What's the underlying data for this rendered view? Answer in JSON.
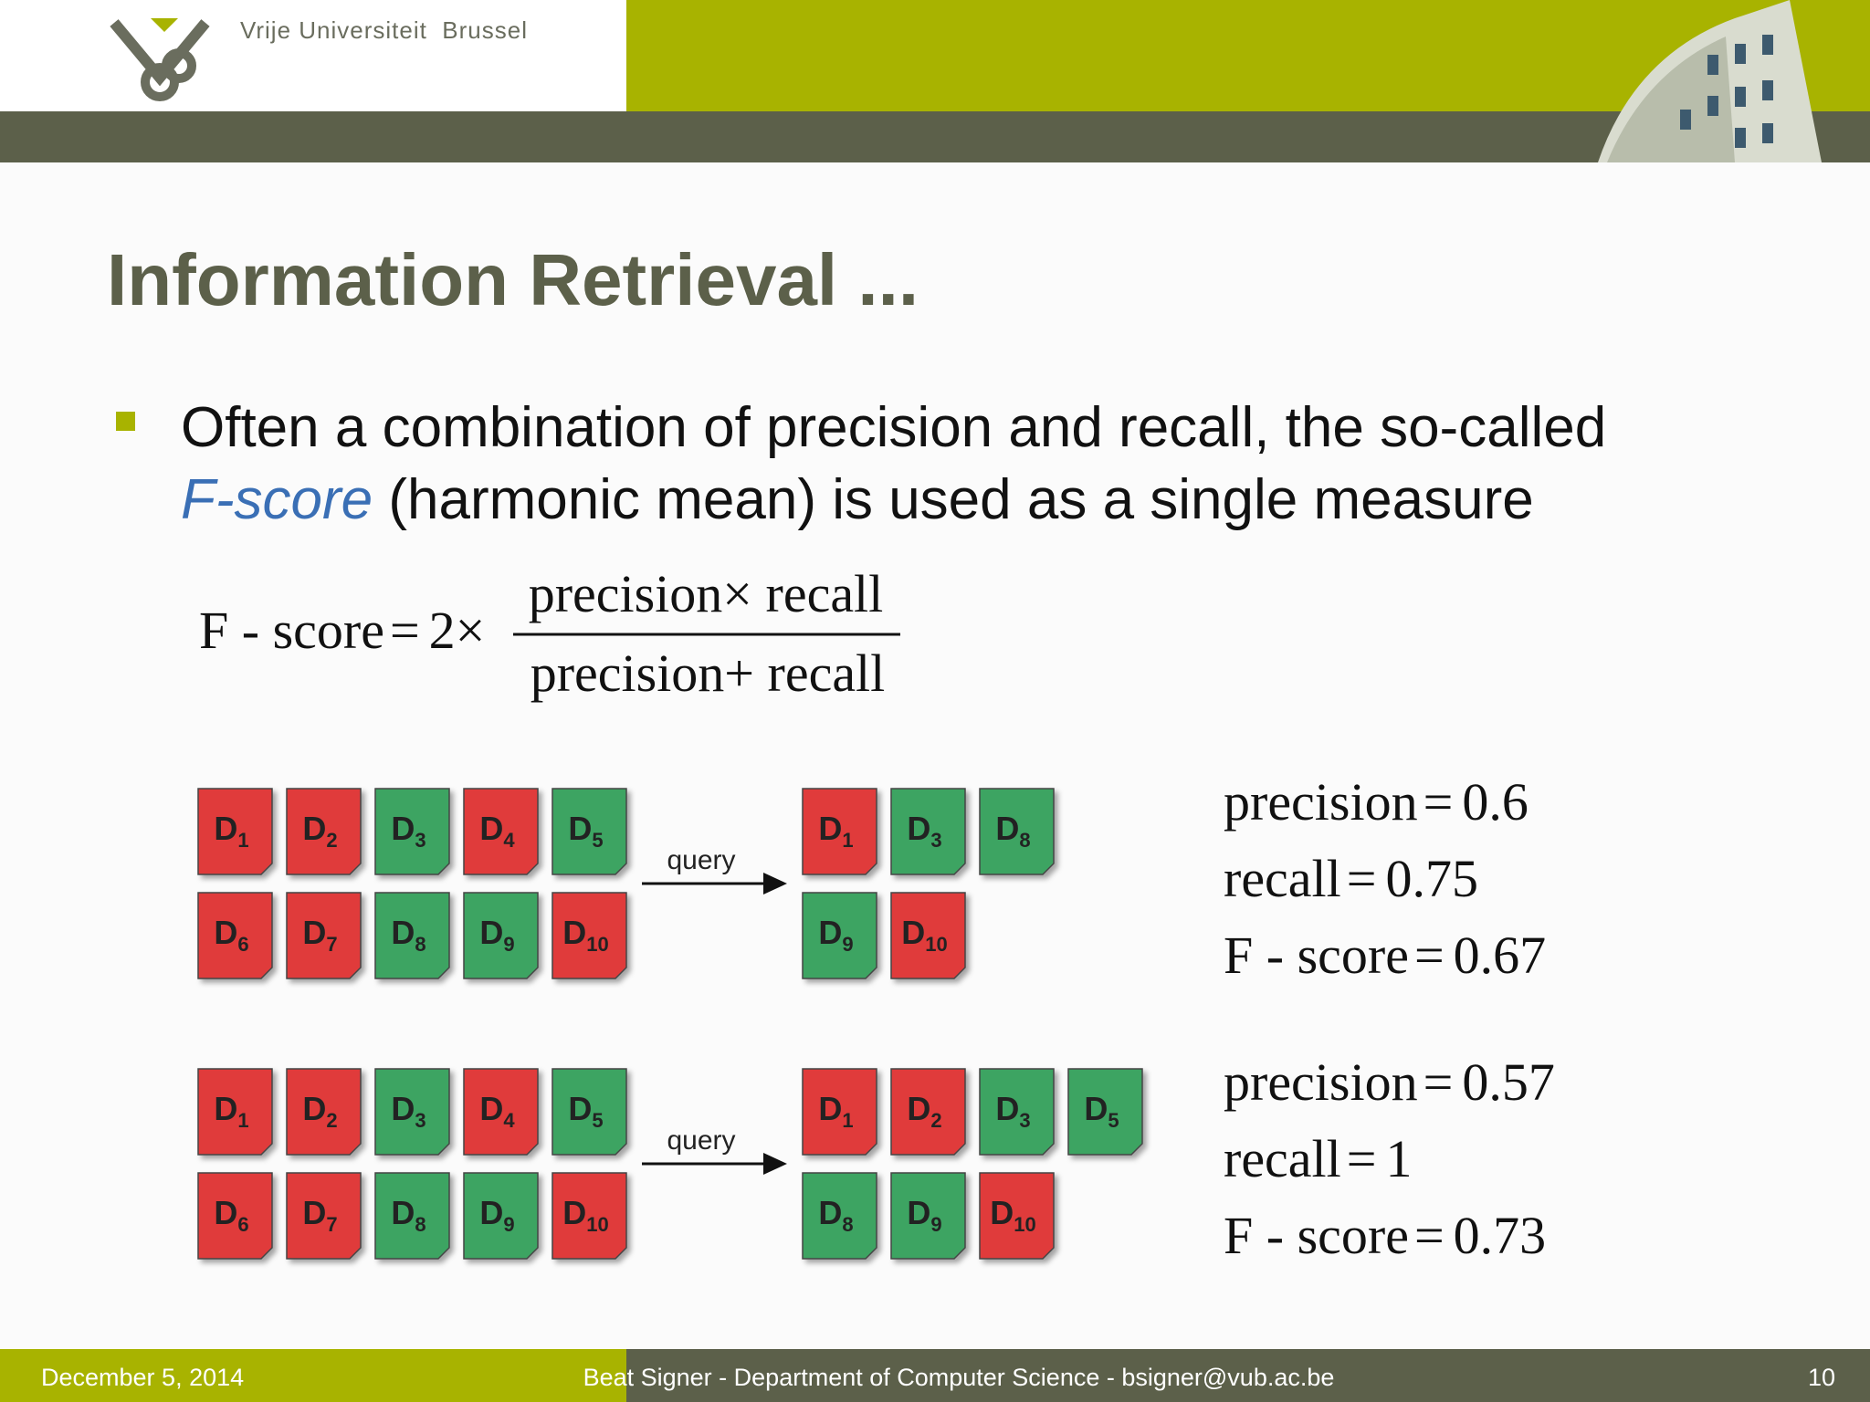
{
  "header": {
    "university": "Vrije Universiteit  Brussel"
  },
  "title": "Information Retrieval ...",
  "bullet": {
    "line1": "Often a combination of precision and recall, the so-called",
    "term": "F-score",
    "line2": " (harmonic mean) is used as a single measure"
  },
  "formula": {
    "lhs": "F - score",
    "eq": "=",
    "factor": "2",
    "times": "×",
    "numerator": "precision× recall",
    "denominator": "precision+ recall"
  },
  "examples": [
    {
      "collection": [
        [
          {
            "letter": "D",
            "index": "1",
            "color": "#e03a3a"
          },
          {
            "letter": "D",
            "index": "2",
            "color": "#e03a3a"
          },
          {
            "letter": "D",
            "index": "3",
            "color": "#3da462"
          },
          {
            "letter": "D",
            "index": "4",
            "color": "#e03a3a"
          },
          {
            "letter": "D",
            "index": "5",
            "color": "#3da462"
          }
        ],
        [
          {
            "letter": "D",
            "index": "6",
            "color": "#e03a3a"
          },
          {
            "letter": "D",
            "index": "7",
            "color": "#e03a3a"
          },
          {
            "letter": "D",
            "index": "8",
            "color": "#3da462"
          },
          {
            "letter": "D",
            "index": "9",
            "color": "#3da462"
          },
          {
            "letter": "D",
            "index": "10",
            "color": "#e03a3a"
          }
        ]
      ],
      "query_label": "query",
      "results": [
        [
          {
            "letter": "D",
            "index": "1",
            "color": "#e03a3a"
          },
          {
            "letter": "D",
            "index": "3",
            "color": "#3da462"
          },
          {
            "letter": "D",
            "index": "8",
            "color": "#3da462"
          }
        ],
        [
          {
            "letter": "D",
            "index": "9",
            "color": "#3da462"
          },
          {
            "letter": "D",
            "index": "10",
            "color": "#e03a3a"
          }
        ]
      ],
      "metrics": [
        {
          "name": "precision",
          "op": "=",
          "value": "0.6"
        },
        {
          "name": "recall",
          "op": "=",
          "value": "0.75"
        },
        {
          "name": "F - score",
          "op": "=",
          "value": "0.67"
        }
      ]
    },
    {
      "collection": [
        [
          {
            "letter": "D",
            "index": "1",
            "color": "#e03a3a"
          },
          {
            "letter": "D",
            "index": "2",
            "color": "#e03a3a"
          },
          {
            "letter": "D",
            "index": "3",
            "color": "#3da462"
          },
          {
            "letter": "D",
            "index": "4",
            "color": "#e03a3a"
          },
          {
            "letter": "D",
            "index": "5",
            "color": "#3da462"
          }
        ],
        [
          {
            "letter": "D",
            "index": "6",
            "color": "#e03a3a"
          },
          {
            "letter": "D",
            "index": "7",
            "color": "#e03a3a"
          },
          {
            "letter": "D",
            "index": "8",
            "color": "#3da462"
          },
          {
            "letter": "D",
            "index": "9",
            "color": "#3da462"
          },
          {
            "letter": "D",
            "index": "10",
            "color": "#e03a3a"
          }
        ]
      ],
      "query_label": "query",
      "results": [
        [
          {
            "letter": "D",
            "index": "1",
            "color": "#e03a3a"
          },
          {
            "letter": "D",
            "index": "2",
            "color": "#e03a3a"
          },
          {
            "letter": "D",
            "index": "3",
            "color": "#3da462"
          },
          {
            "letter": "D",
            "index": "5",
            "color": "#3da462"
          }
        ],
        [
          {
            "letter": "D",
            "index": "8",
            "color": "#3da462"
          },
          {
            "letter": "D",
            "index": "9",
            "color": "#3da462"
          },
          {
            "letter": "D",
            "index": "10",
            "color": "#e03a3a"
          }
        ]
      ],
      "metrics": [
        {
          "name": "precision",
          "op": "=",
          "value": "0.57"
        },
        {
          "name": "recall",
          "op": "=",
          "value": "1"
        },
        {
          "name": "F - score",
          "op": "=",
          "value": "0.73"
        }
      ]
    }
  ],
  "footer": {
    "date": "December 5, 2014",
    "author": "Beat Signer - Department of Computer Science - bsigner@vub.ac.be",
    "page": "10"
  }
}
